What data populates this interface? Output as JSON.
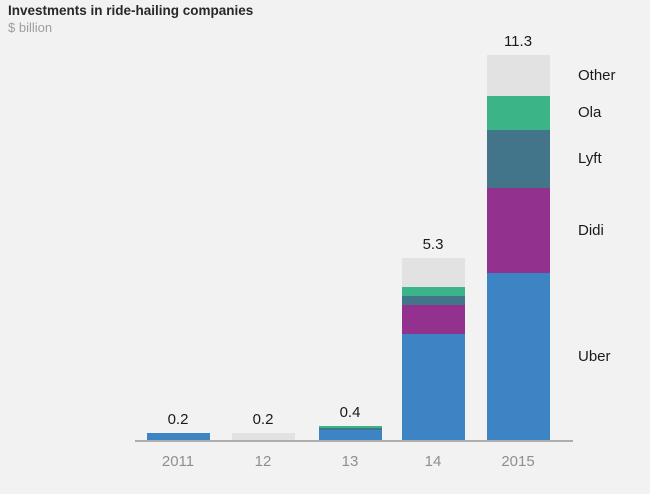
{
  "header": {
    "title": "Investments in ride-hailing companies",
    "subtitle": "$ billion"
  },
  "colors": {
    "background": "#f2f2f2",
    "axis_line": "#adadad",
    "title_text": "#282828",
    "subtitle_text": "#9e9e9e",
    "value_label_text": "#1a1a1a",
    "x_label_text": "#8f8f8f",
    "uber_blue": "#3c84c4",
    "didi_purple": "#93328e",
    "lyft_teal": "#42758a",
    "ola_green": "#3bb488",
    "other_gray": "#e2e2e2"
  },
  "chart_data": {
    "type": "bar",
    "stacked": true,
    "title": "Investments in ride-hailing companies",
    "subtitle": "$ billion",
    "xlabel": "",
    "ylabel": "$ billion",
    "categories": [
      "2011",
      "12",
      "13",
      "14",
      "2015"
    ],
    "series": [
      {
        "name": "Uber",
        "color": "#3c84c4",
        "values": [
          0.2,
          0,
          0.3,
          3.1,
          4.9
        ]
      },
      {
        "name": "Didi",
        "color": "#93328e",
        "values": [
          0,
          0,
          0,
          0.85,
          2.5
        ]
      },
      {
        "name": "Lyft",
        "color": "#42758a",
        "values": [
          0,
          0,
          0.05,
          0.25,
          1.7
        ]
      },
      {
        "name": "Ola",
        "color": "#3bb488",
        "values": [
          0,
          0,
          0.05,
          0.25,
          1.0
        ]
      },
      {
        "name": "Other",
        "color": "#e2e2e2",
        "values": [
          0,
          0.2,
          0,
          0.85,
          1.2
        ]
      }
    ],
    "totals": [
      0.2,
      0.2,
      0.4,
      5.3,
      11.3
    ],
    "total_labels": [
      "0.2",
      "0.2",
      "0.4",
      "5.3",
      "11.3"
    ],
    "legend_labels": [
      "Other",
      "Ola",
      "Lyft",
      "Didi",
      "Uber"
    ],
    "legend_position": "right",
    "ylim": [
      0,
      11.3
    ],
    "grid": false
  }
}
